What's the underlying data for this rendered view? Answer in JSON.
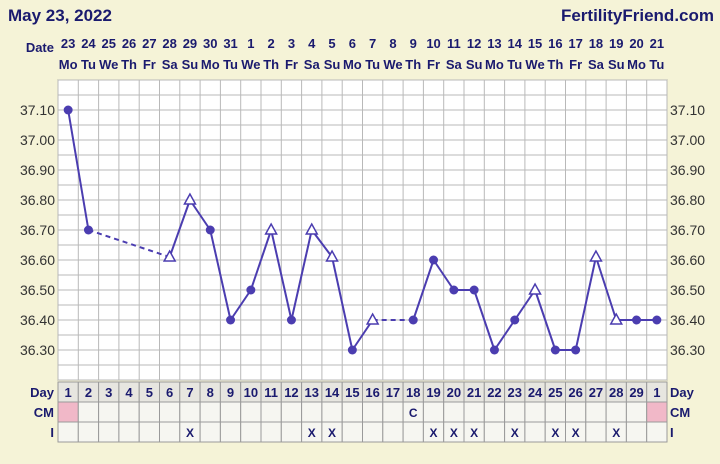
{
  "header": {
    "date": "May 23, 2022",
    "site": "FertilityFriend.com"
  },
  "labels": {
    "date": "Date",
    "day": "Day",
    "cm": "CM",
    "i": "I"
  },
  "colors": {
    "background": "#f5f3d7",
    "plot_bg": "#ffffff",
    "grid": "#b9b9b9",
    "line": "#4b3db0",
    "text": "#1a1a6e",
    "cm_pink": "#f1b8c8",
    "bottom_row_bg": "#e7e6e0"
  },
  "chart_data": {
    "type": "line",
    "title": "",
    "ylabel": "",
    "ylim": [
      36.2,
      37.2
    ],
    "yticks": [
      "37.10",
      "37.00",
      "36.90",
      "36.80",
      "36.70",
      "36.60",
      "36.50",
      "36.40",
      "36.30"
    ],
    "dates": [
      "23",
      "24",
      "25",
      "26",
      "27",
      "28",
      "29",
      "30",
      "31",
      "1",
      "2",
      "3",
      "4",
      "5",
      "6",
      "7",
      "8",
      "9",
      "10",
      "11",
      "12",
      "13",
      "14",
      "15",
      "16",
      "17",
      "18",
      "19",
      "20",
      "21"
    ],
    "weekdays": [
      "Mo",
      "Tu",
      "We",
      "Th",
      "Fr",
      "Sa",
      "Su",
      "Mo",
      "Tu",
      "We",
      "Th",
      "Fr",
      "Sa",
      "Su",
      "Mo",
      "Tu",
      "We",
      "Th",
      "Fr",
      "Sa",
      "Su",
      "Mo",
      "Tu",
      "We",
      "Th",
      "Fr",
      "Sa",
      "Su",
      "Mo",
      "Tu"
    ],
    "cycle_days": [
      "1",
      "2",
      "3",
      "4",
      "5",
      "6",
      "7",
      "8",
      "9",
      "10",
      "11",
      "12",
      "13",
      "14",
      "15",
      "16",
      "17",
      "18",
      "19",
      "20",
      "21",
      "22",
      "23",
      "24",
      "25",
      "26",
      "27",
      "28",
      "29",
      "1"
    ],
    "temperatures": [
      37.1,
      36.7,
      null,
      null,
      null,
      36.61,
      36.8,
      36.7,
      36.4,
      36.5,
      36.7,
      36.4,
      36.7,
      36.61,
      36.3,
      36.4,
      null,
      36.4,
      36.6,
      36.5,
      36.5,
      36.3,
      36.4,
      36.5,
      36.3,
      36.3,
      36.61,
      36.4,
      36.4,
      36.4
    ],
    "markers": [
      "circle",
      "circle",
      null,
      null,
      null,
      "triangle",
      "triangle",
      "circle",
      "circle",
      "circle",
      "triangle",
      "circle",
      "triangle",
      "triangle",
      "circle",
      "triangle",
      null,
      "circle",
      "circle",
      "circle",
      "circle",
      "circle",
      "circle",
      "triangle",
      "circle",
      "circle",
      "triangle",
      "triangle",
      "circle",
      "circle"
    ],
    "cm": [
      "pink",
      "",
      "",
      "",
      "",
      "",
      "",
      "",
      "",
      "",
      "",
      "",
      "",
      "",
      "",
      "",
      "",
      "C",
      "",
      "",
      "",
      "",
      "",
      "",
      "",
      "",
      "",
      "",
      "",
      "pink"
    ],
    "intercourse": [
      "",
      "",
      "",
      "",
      "",
      "",
      "X",
      "",
      "",
      "",
      "",
      "",
      "X",
      "X",
      "",
      "",
      "",
      "",
      "X",
      "X",
      "X",
      "",
      "X",
      "",
      "X",
      "X",
      "",
      "X",
      "",
      ""
    ]
  }
}
